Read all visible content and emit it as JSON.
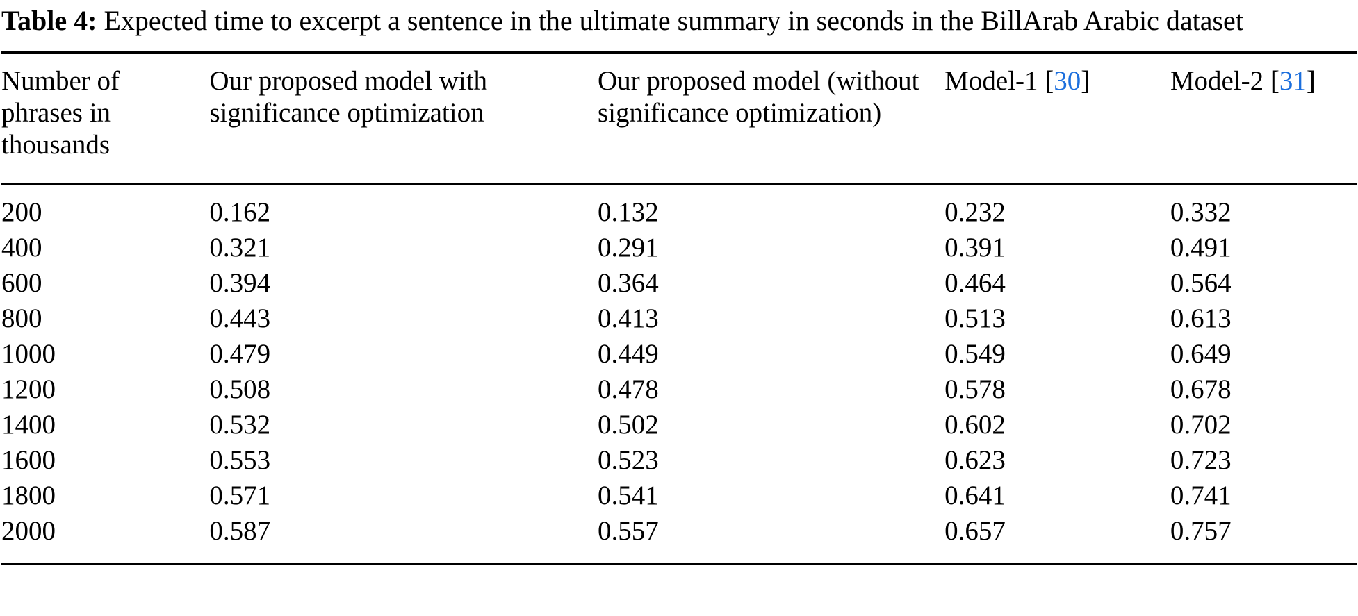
{
  "caption": {
    "label": "Table 4:",
    "text": "Expected time to excerpt a sentence in the ultimate summary in seconds in the BillArab Arabic dataset"
  },
  "table": {
    "citation_open": "[",
    "citation_close": "]",
    "columns": [
      {
        "label": "Number of phrases in thousands"
      },
      {
        "label": "Our proposed model with significance optimization"
      },
      {
        "label": "Our proposed model (without significance optimization)"
      },
      {
        "label": "Model-1",
        "citation": "30"
      },
      {
        "label": "Model-2",
        "citation": "31"
      }
    ],
    "rows": [
      [
        "200",
        "0.162",
        "0.132",
        "0.232",
        "0.332"
      ],
      [
        "400",
        "0.321",
        "0.291",
        "0.391",
        "0.491"
      ],
      [
        "600",
        "0.394",
        "0.364",
        "0.464",
        "0.564"
      ],
      [
        "800",
        "0.443",
        "0.413",
        "0.513",
        "0.613"
      ],
      [
        "1000",
        "0.479",
        "0.449",
        "0.549",
        "0.649"
      ],
      [
        "1200",
        "0.508",
        "0.478",
        "0.578",
        "0.678"
      ],
      [
        "1400",
        "0.532",
        "0.502",
        "0.602",
        "0.702"
      ],
      [
        "1600",
        "0.553",
        "0.523",
        "0.623",
        "0.723"
      ],
      [
        "1800",
        "0.571",
        "0.541",
        "0.641",
        "0.741"
      ],
      [
        "2000",
        "0.587",
        "0.557",
        "0.657",
        "0.757"
      ]
    ]
  },
  "colors": {
    "text": "#000000",
    "background": "#ffffff",
    "citation_link": "#1c6fdd",
    "rule": "#000000"
  }
}
